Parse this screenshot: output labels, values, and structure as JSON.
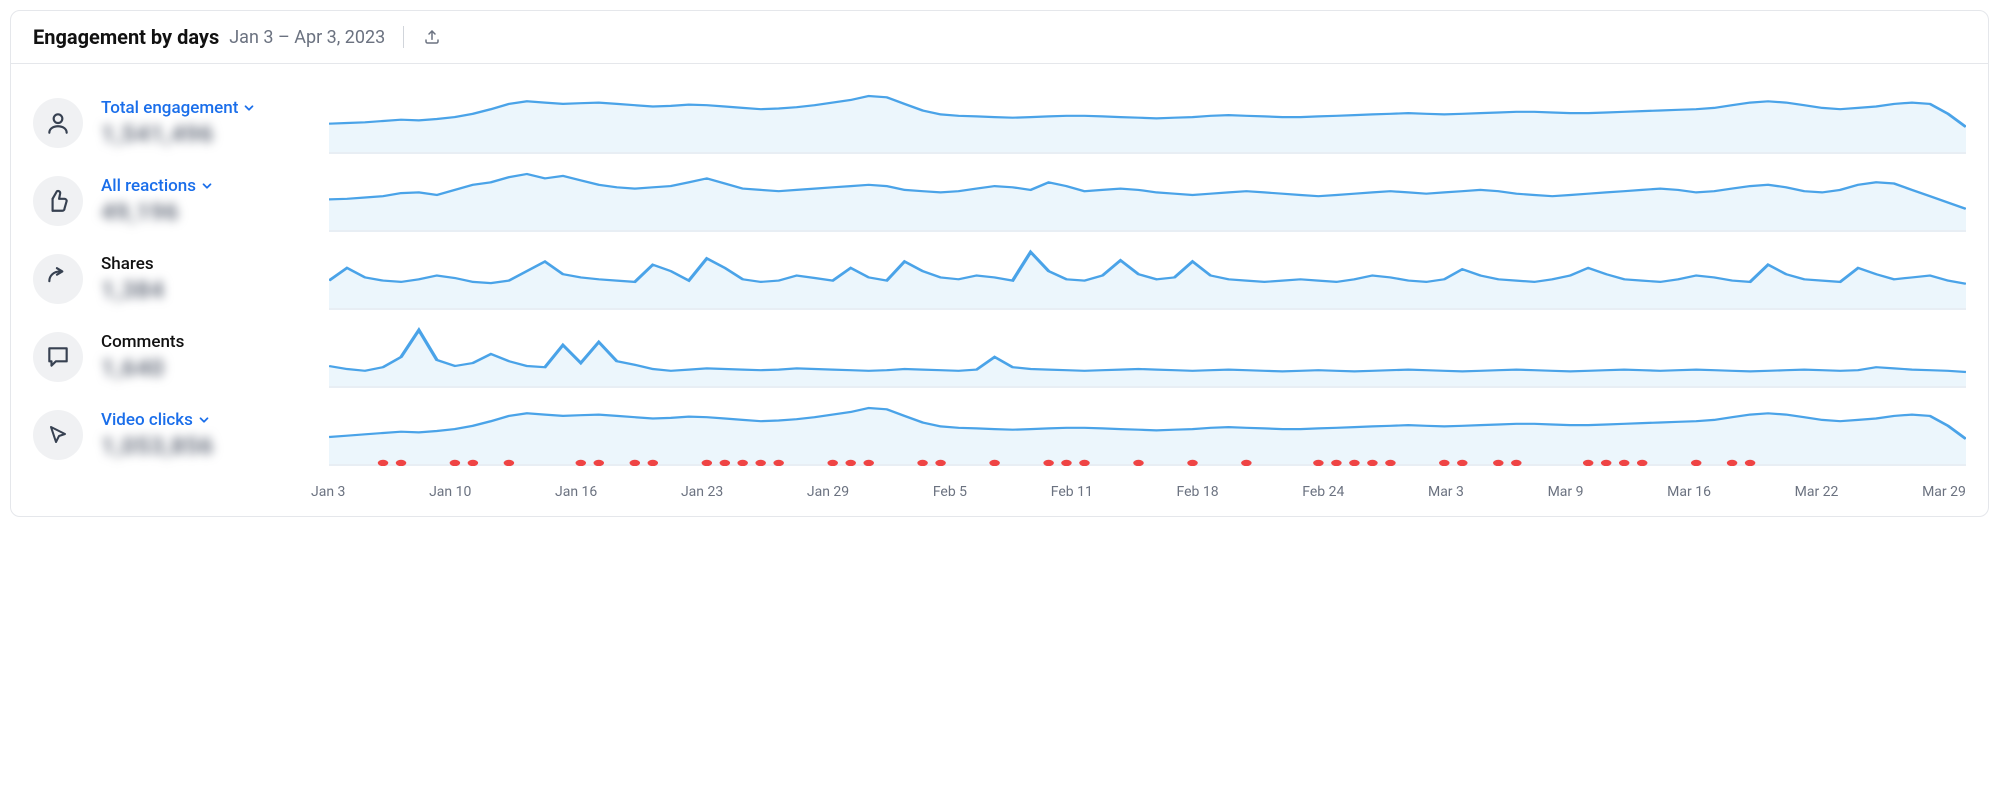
{
  "header": {
    "title": "Engagement by days",
    "date_range": "Jan 3 – Apr 3, 2023"
  },
  "chart_style": {
    "line_color": "#4aa3e8",
    "fill_color": "#c8e4f7",
    "dot_color": "#ef4444",
    "grid_color": "#e5e7eb",
    "n_points": 92
  },
  "metrics": [
    {
      "id": "total-engagement",
      "label": "Total engagement",
      "value": "1,541,496",
      "link": true,
      "icon": "person",
      "series": [
        40,
        41,
        42,
        44,
        46,
        45,
        47,
        50,
        55,
        62,
        70,
        74,
        72,
        70,
        71,
        72,
        70,
        68,
        66,
        67,
        69,
        68,
        66,
        64,
        62,
        63,
        65,
        68,
        72,
        76,
        82,
        80,
        70,
        60,
        54,
        52,
        51,
        50,
        49,
        50,
        51,
        52,
        52,
        51,
        50,
        49,
        48,
        49,
        50,
        52,
        53,
        52,
        51,
        50,
        50,
        51,
        52,
        53,
        54,
        55,
        56,
        55,
        54,
        55,
        56,
        57,
        58,
        58,
        57,
        56,
        56,
        57,
        58,
        59,
        60,
        61,
        62,
        64,
        68,
        72,
        74,
        72,
        68,
        64,
        62,
        64,
        66,
        70,
        72,
        70,
        55,
        35
      ],
      "dots": []
    },
    {
      "id": "all-reactions",
      "label": "All reactions",
      "value": "49,196",
      "link": true,
      "icon": "thumb",
      "series": [
        45,
        46,
        48,
        50,
        55,
        56,
        52,
        60,
        68,
        72,
        80,
        85,
        78,
        82,
        75,
        68,
        64,
        62,
        64,
        66,
        72,
        78,
        70,
        62,
        60,
        58,
        60,
        62,
        64,
        66,
        68,
        66,
        60,
        58,
        56,
        58,
        62,
        66,
        64,
        60,
        72,
        66,
        58,
        60,
        62,
        60,
        56,
        54,
        52,
        54,
        56,
        58,
        56,
        54,
        52,
        50,
        52,
        54,
        56,
        58,
        56,
        54,
        56,
        58,
        60,
        58,
        54,
        52,
        50,
        52,
        54,
        56,
        58,
        60,
        62,
        60,
        56,
        58,
        62,
        66,
        68,
        64,
        58,
        56,
        60,
        68,
        72,
        70,
        60,
        50,
        40,
        30
      ],
      "dots": []
    },
    {
      "id": "shares",
      "label": "Shares",
      "value": "1,384",
      "link": false,
      "icon": "share",
      "series": [
        40,
        60,
        45,
        40,
        38,
        42,
        48,
        44,
        38,
        36,
        40,
        55,
        70,
        50,
        45,
        42,
        40,
        38,
        65,
        55,
        40,
        75,
        60,
        42,
        38,
        40,
        48,
        44,
        40,
        60,
        45,
        40,
        70,
        55,
        45,
        42,
        48,
        45,
        40,
        85,
        55,
        42,
        40,
        48,
        72,
        50,
        42,
        45,
        70,
        48,
        42,
        40,
        38,
        40,
        42,
        40,
        38,
        42,
        48,
        45,
        40,
        38,
        42,
        58,
        48,
        42,
        40,
        38,
        42,
        48,
        60,
        50,
        42,
        40,
        38,
        42,
        48,
        45,
        40,
        38,
        65,
        50,
        42,
        40,
        38,
        60,
        50,
        42,
        45,
        48,
        40,
        35
      ],
      "dots": []
    },
    {
      "id": "comments",
      "label": "Comments",
      "value": "1,640",
      "link": false,
      "icon": "comment",
      "series": [
        30,
        25,
        22,
        28,
        45,
        90,
        40,
        30,
        35,
        50,
        38,
        30,
        28,
        65,
        35,
        70,
        38,
        32,
        25,
        22,
        24,
        26,
        25,
        24,
        23,
        24,
        26,
        25,
        24,
        23,
        22,
        23,
        25,
        24,
        23,
        22,
        24,
        45,
        28,
        25,
        24,
        23,
        22,
        23,
        24,
        25,
        24,
        23,
        22,
        23,
        24,
        23,
        22,
        21,
        22,
        23,
        22,
        21,
        22,
        23,
        24,
        23,
        22,
        21,
        22,
        23,
        24,
        23,
        22,
        21,
        22,
        23,
        24,
        23,
        22,
        23,
        24,
        23,
        22,
        21,
        22,
        23,
        24,
        23,
        22,
        23,
        28,
        26,
        24,
        23,
        22,
        20
      ],
      "dots": []
    },
    {
      "id": "video-clicks",
      "label": "Video clicks",
      "value": "1,053,856",
      "link": true,
      "icon": "cursor",
      "series": [
        38,
        40,
        42,
        44,
        46,
        45,
        47,
        50,
        55,
        62,
        70,
        74,
        72,
        70,
        71,
        72,
        70,
        68,
        66,
        67,
        69,
        68,
        66,
        64,
        62,
        63,
        65,
        68,
        72,
        76,
        82,
        80,
        70,
        60,
        54,
        52,
        51,
        50,
        49,
        50,
        51,
        52,
        52,
        51,
        50,
        49,
        48,
        49,
        50,
        52,
        53,
        52,
        51,
        50,
        50,
        51,
        52,
        53,
        54,
        55,
        56,
        55,
        54,
        55,
        56,
        57,
        58,
        58,
        57,
        56,
        56,
        57,
        58,
        59,
        60,
        61,
        62,
        64,
        68,
        72,
        74,
        72,
        68,
        64,
        62,
        64,
        66,
        70,
        72,
        70,
        55,
        35
      ],
      "dots": [
        3,
        4,
        7,
        8,
        10,
        14,
        15,
        17,
        18,
        21,
        22,
        23,
        24,
        25,
        28,
        29,
        30,
        33,
        34,
        37,
        40,
        41,
        42,
        45,
        48,
        51,
        55,
        56,
        57,
        58,
        59,
        62,
        63,
        65,
        66,
        70,
        71,
        72,
        73,
        76,
        78,
        79
      ]
    }
  ],
  "x_axis": {
    "labels": [
      "Jan 3",
      "Jan 10",
      "Jan 16",
      "Jan 23",
      "Jan 29",
      "Feb 5",
      "Feb 11",
      "Feb 18",
      "Feb 24",
      "Mar 3",
      "Mar 9",
      "Mar 16",
      "Mar 22",
      "Mar 29"
    ]
  }
}
